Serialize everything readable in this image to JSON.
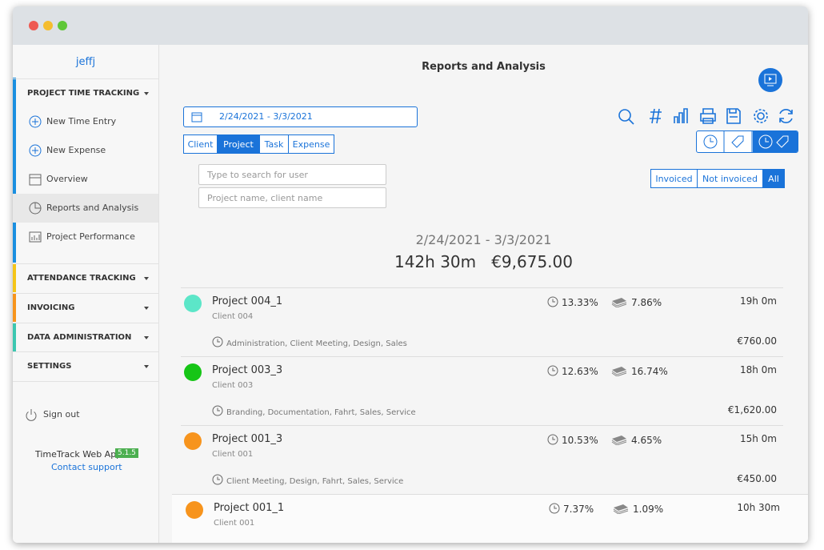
{
  "window": {
    "user": "jeffj"
  },
  "sidebar": {
    "groups": [
      {
        "title": "PROJECT TIME TRACKING",
        "items": [
          "New Time Entry",
          "New Expense",
          "Overview",
          "Reports and Analysis",
          "Project Performance"
        ]
      },
      {
        "title": "ATTENDANCE TRACKING"
      },
      {
        "title": "INVOICING"
      },
      {
        "title": "DATA ADMINISTRATION"
      },
      {
        "title": "SETTINGS"
      }
    ],
    "sign_out": "Sign out",
    "app_name": "TimeTrack Web App",
    "version": "5.1.5",
    "support": "Contact support"
  },
  "main": {
    "title": "Reports and Analysis",
    "date_range": "2/24/2021 - 3/3/2021",
    "tabs": [
      "Client",
      "Project",
      "Task",
      "Expense"
    ],
    "search": [
      "Type to search for user",
      "Project name, client name"
    ],
    "invoice_filter": [
      "Invoiced",
      "Not invoiced",
      "All"
    ],
    "summary": {
      "date_range": "2/24/2021 - 3/3/2021",
      "hours": "142h 30m",
      "amount": "€9,675.00"
    },
    "projects": [
      {
        "name": "Project 004_1",
        "client": "Client 004",
        "color": "#5ce6c8",
        "time_share": "13.33%",
        "expense_share": "7.86%",
        "duration": "19h 0m",
        "tasks": "Administration, Client Meeting, Design, Sales",
        "amount": "€760.00"
      },
      {
        "name": "Project 003_3",
        "client": "Client 003",
        "color": "#16c516",
        "time_share": "12.63%",
        "expense_share": "16.74%",
        "duration": "18h 0m",
        "tasks": "Branding, Documentation, Fahrt, Sales, Service",
        "amount": "€1,620.00"
      },
      {
        "name": "Project 001_3",
        "client": "Client 001",
        "color": "#f7941d",
        "time_share": "10.53%",
        "expense_share": "4.65%",
        "duration": "15h 0m",
        "tasks": "Client Meeting, Design, Fahrt, Sales, Service",
        "amount": "€450.00"
      },
      {
        "name": "Project 001_1",
        "client": "Client 001",
        "color": "#f7941d",
        "time_share": "7.37%",
        "expense_share": "1.09%",
        "duration": "10h 30m"
      }
    ]
  }
}
